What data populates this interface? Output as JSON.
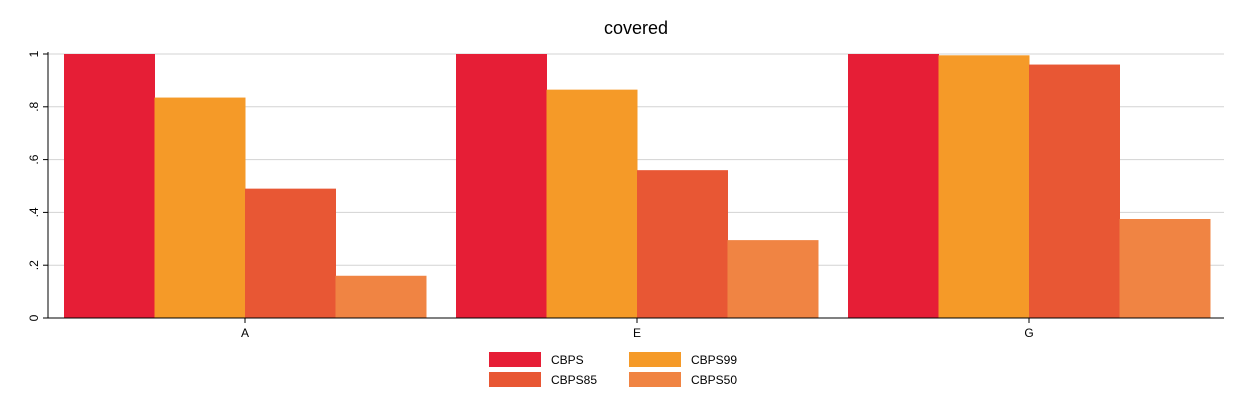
{
  "chart_data": {
    "type": "bar",
    "title": "covered",
    "xlabel": "",
    "ylabel": "",
    "categories": [
      "A",
      "E",
      "G"
    ],
    "ylim": [
      0,
      1
    ],
    "yticks": [
      0,
      0.2,
      0.4,
      0.6,
      0.8,
      1
    ],
    "ytick_labels": [
      "0",
      ".2",
      ".4",
      ".6",
      ".8",
      "1"
    ],
    "grid": true,
    "legend_position": "bottom",
    "series": [
      {
        "name": "CBPS",
        "color": "#E61E36",
        "values": [
          1.0,
          1.0,
          1.0
        ]
      },
      {
        "name": "CBPS99",
        "color": "#F59A28",
        "values": [
          0.835,
          0.865,
          0.995
        ]
      },
      {
        "name": "CBPS85",
        "color": "#E85734",
        "values": [
          0.49,
          0.56,
          0.96
        ]
      },
      {
        "name": "CBPS50",
        "color": "#F08443",
        "values": [
          0.16,
          0.295,
          0.375
        ]
      }
    ]
  }
}
